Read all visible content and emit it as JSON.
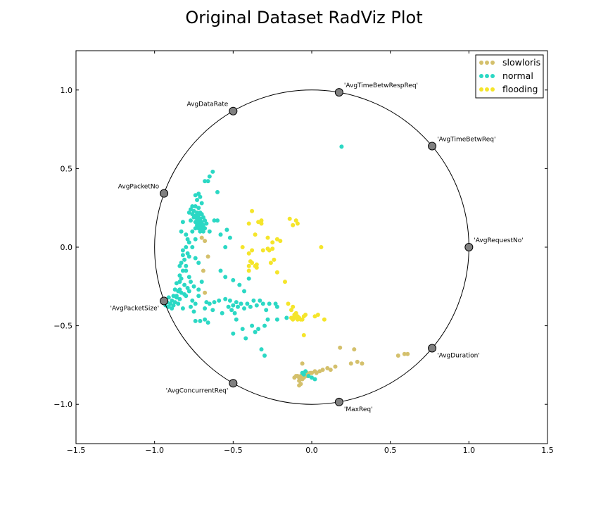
{
  "chart_data": {
    "type": "scatter",
    "title": "Original Dataset RadViz Plot",
    "xlim": [
      -1.5,
      1.5
    ],
    "ylim": [
      -1.25,
      1.25
    ],
    "x_ticks": [
      -1.5,
      -1.0,
      -0.5,
      0.0,
      0.5,
      1.0,
      1.5
    ],
    "x_tick_labels": [
      "−1.5",
      "−1.0",
      "−0.5",
      "0.0",
      "0.5",
      "1.0",
      "1.5"
    ],
    "y_ticks": [
      1.0,
      0.5,
      0.0,
      -0.5,
      -1.0
    ],
    "y_tick_labels": [
      "1.0",
      "0.5",
      "0.0",
      "−0.5",
      "−1.0"
    ],
    "grid": false,
    "legend_position": "top-right",
    "unit_circle": true,
    "anchors": [
      {
        "label": "'AvgRequestNo'",
        "x": 1.0,
        "y": 0.0
      },
      {
        "label": "'AvgTimeBetwReq'",
        "x": 0.766,
        "y": 0.643
      },
      {
        "label": "'AvgTimeBetwRespReq'",
        "x": 0.174,
        "y": 0.985
      },
      {
        "label": "AvgDataRate",
        "x": -0.5,
        "y": 0.866
      },
      {
        "label": "AvgPacketNo",
        "x": -0.94,
        "y": 0.342
      },
      {
        "label": "'AvgPacketSize'",
        "x": -0.94,
        "y": -0.342
      },
      {
        "label": "'AvgConcurrentReq'",
        "x": -0.5,
        "y": -0.866
      },
      {
        "label": "'MaxReq'",
        "x": 0.174,
        "y": -0.985
      },
      {
        "label": "'AvgDuration'",
        "x": 0.766,
        "y": -0.643
      }
    ],
    "series": [
      {
        "name": "slowloris",
        "color": "#d4c06c",
        "points": [
          [
            -0.11,
            -0.83
          ],
          [
            -0.1,
            -0.82
          ],
          [
            -0.09,
            -0.82
          ],
          [
            -0.08,
            -0.83
          ],
          [
            -0.07,
            -0.82
          ],
          [
            -0.06,
            -0.81
          ],
          [
            -0.05,
            -0.82
          ],
          [
            -0.04,
            -0.81
          ],
          [
            -0.03,
            -0.8
          ],
          [
            -0.02,
            -0.81
          ],
          [
            -0.01,
            -0.8
          ],
          [
            0.0,
            -0.8
          ],
          [
            0.02,
            -0.79
          ],
          [
            0.03,
            -0.8
          ],
          [
            0.05,
            -0.79
          ],
          [
            0.07,
            -0.78
          ],
          [
            0.1,
            -0.77
          ],
          [
            0.12,
            -0.78
          ],
          [
            0.15,
            -0.76
          ],
          [
            -0.08,
            -0.85
          ],
          [
            -0.08,
            -0.88
          ],
          [
            -0.07,
            -0.87
          ],
          [
            -0.06,
            -0.84
          ],
          [
            -0.05,
            -0.83
          ],
          [
            -0.03,
            -0.82
          ],
          [
            -0.06,
            -0.74
          ],
          [
            0.18,
            -0.64
          ],
          [
            0.27,
            -0.65
          ],
          [
            0.25,
            -0.74
          ],
          [
            0.29,
            -0.73
          ],
          [
            0.32,
            -0.74
          ],
          [
            0.55,
            -0.69
          ],
          [
            0.59,
            -0.68
          ],
          [
            0.61,
            -0.68
          ],
          [
            -0.7,
            0.06
          ],
          [
            -0.68,
            0.04
          ],
          [
            -0.66,
            -0.06
          ],
          [
            -0.68,
            -0.29
          ],
          [
            -0.69,
            -0.15
          ]
        ]
      },
      {
        "name": "normal",
        "color": "#2bd8c4",
        "points": [
          [
            0.19,
            0.64
          ],
          [
            -0.63,
            0.48
          ],
          [
            -0.65,
            0.45
          ],
          [
            -0.68,
            0.42
          ],
          [
            -0.66,
            0.42
          ],
          [
            -0.6,
            0.35
          ],
          [
            -0.72,
            0.34
          ],
          [
            -0.74,
            0.33
          ],
          [
            -0.71,
            0.32
          ],
          [
            -0.73,
            0.3
          ],
          [
            -0.7,
            0.28
          ],
          [
            -0.76,
            0.26
          ],
          [
            -0.74,
            0.26
          ],
          [
            -0.72,
            0.25
          ],
          [
            -0.77,
            0.24
          ],
          [
            -0.75,
            0.23
          ],
          [
            -0.73,
            0.22
          ],
          [
            -0.71,
            0.22
          ],
          [
            -0.78,
            0.22
          ],
          [
            -0.76,
            0.21
          ],
          [
            -0.74,
            0.2
          ],
          [
            -0.72,
            0.2
          ],
          [
            -0.7,
            0.21
          ],
          [
            -0.75,
            0.19
          ],
          [
            -0.73,
            0.18
          ],
          [
            -0.71,
            0.18
          ],
          [
            -0.69,
            0.19
          ],
          [
            -0.77,
            0.17
          ],
          [
            -0.74,
            0.16
          ],
          [
            -0.72,
            0.16
          ],
          [
            -0.7,
            0.16
          ],
          [
            -0.68,
            0.17
          ],
          [
            -0.73,
            0.14
          ],
          [
            -0.71,
            0.14
          ],
          [
            -0.69,
            0.14
          ],
          [
            -0.67,
            0.15
          ],
          [
            -0.72,
            0.12
          ],
          [
            -0.7,
            0.12
          ],
          [
            -0.68,
            0.12
          ],
          [
            -0.74,
            0.12
          ],
          [
            -0.71,
            0.1
          ],
          [
            -0.69,
            0.1
          ],
          [
            -0.76,
            0.1
          ],
          [
            -0.82,
            0.16
          ],
          [
            -0.83,
            0.1
          ],
          [
            -0.8,
            0.08
          ],
          [
            -0.79,
            0.05
          ],
          [
            -0.78,
            0.03
          ],
          [
            -0.8,
            0.0
          ],
          [
            -0.82,
            -0.02
          ],
          [
            -0.79,
            -0.04
          ],
          [
            -0.78,
            -0.06
          ],
          [
            -0.81,
            -0.08
          ],
          [
            -0.83,
            -0.1
          ],
          [
            -0.8,
            -0.12
          ],
          [
            -0.82,
            -0.15
          ],
          [
            -0.84,
            -0.18
          ],
          [
            -0.83,
            -0.2
          ],
          [
            -0.86,
            -0.23
          ],
          [
            -0.81,
            -0.24
          ],
          [
            -0.79,
            -0.26
          ],
          [
            -0.87,
            -0.27
          ],
          [
            -0.85,
            -0.28
          ],
          [
            -0.83,
            -0.29
          ],
          [
            -0.81,
            -0.3
          ],
          [
            -0.88,
            -0.31
          ],
          [
            -0.86,
            -0.32
          ],
          [
            -0.84,
            -0.33
          ],
          [
            -0.91,
            -0.32
          ],
          [
            -0.89,
            -0.34
          ],
          [
            -0.92,
            -0.35
          ],
          [
            -0.9,
            -0.36
          ],
          [
            -0.88,
            -0.37
          ],
          [
            -0.93,
            -0.37
          ],
          [
            -0.91,
            -0.38
          ],
          [
            -0.87,
            -0.35
          ],
          [
            -0.85,
            -0.36
          ],
          [
            -0.89,
            -0.39
          ],
          [
            -0.86,
            -0.31
          ],
          [
            -0.84,
            -0.27
          ],
          [
            -0.77,
            -0.22
          ],
          [
            -0.75,
            -0.25
          ],
          [
            -0.72,
            -0.27
          ],
          [
            -0.7,
            -0.22
          ],
          [
            -0.76,
            -0.34
          ],
          [
            -0.74,
            -0.36
          ],
          [
            -0.72,
            -0.31
          ],
          [
            -0.74,
            -0.47
          ],
          [
            -0.71,
            -0.47
          ],
          [
            -0.68,
            -0.46
          ],
          [
            -0.66,
            -0.48
          ],
          [
            -0.68,
            -0.39
          ],
          [
            -0.67,
            -0.35
          ],
          [
            -0.65,
            -0.36
          ],
          [
            -0.63,
            -0.4
          ],
          [
            -0.62,
            -0.35
          ],
          [
            -0.59,
            -0.34
          ],
          [
            -0.57,
            -0.42
          ],
          [
            -0.55,
            -0.33
          ],
          [
            -0.52,
            -0.34
          ],
          [
            -0.5,
            -0.37
          ],
          [
            -0.48,
            -0.35
          ],
          [
            -0.53,
            -0.38
          ],
          [
            -0.51,
            -0.4
          ],
          [
            -0.49,
            -0.42
          ],
          [
            -0.47,
            -0.38
          ],
          [
            -0.45,
            -0.36
          ],
          [
            -0.43,
            -0.39
          ],
          [
            -0.41,
            -0.36
          ],
          [
            -0.39,
            -0.38
          ],
          [
            -0.37,
            -0.34
          ],
          [
            -0.35,
            -0.37
          ],
          [
            -0.33,
            -0.34
          ],
          [
            -0.31,
            -0.36
          ],
          [
            -0.29,
            -0.4
          ],
          [
            -0.27,
            -0.36
          ],
          [
            -0.23,
            -0.36
          ],
          [
            -0.22,
            -0.38
          ],
          [
            -0.48,
            -0.46
          ],
          [
            -0.44,
            -0.52
          ],
          [
            -0.42,
            -0.58
          ],
          [
            -0.38,
            -0.5
          ],
          [
            -0.34,
            -0.52
          ],
          [
            -0.3,
            -0.5
          ],
          [
            -0.28,
            -0.46
          ],
          [
            -0.22,
            -0.46
          ],
          [
            -0.16,
            -0.45
          ],
          [
            -0.32,
            -0.65
          ],
          [
            -0.3,
            -0.69
          ],
          [
            -0.36,
            -0.54
          ],
          [
            -0.5,
            -0.55
          ],
          [
            -0.58,
            -0.15
          ],
          [
            -0.55,
            -0.19
          ],
          [
            -0.5,
            -0.21
          ],
          [
            -0.46,
            -0.24
          ],
          [
            -0.43,
            -0.28
          ],
          [
            -0.4,
            -0.2
          ],
          [
            -0.54,
            0.11
          ],
          [
            -0.52,
            0.06
          ],
          [
            -0.55,
            0.0
          ],
          [
            -0.58,
            0.08
          ],
          [
            -0.62,
            0.17
          ],
          [
            -0.6,
            0.17
          ],
          [
            -0.65,
            0.1
          ],
          [
            -0.82,
            -0.05
          ],
          [
            -0.84,
            -0.12
          ],
          [
            -0.8,
            -0.15
          ],
          [
            -0.84,
            -0.22
          ],
          [
            -0.78,
            -0.28
          ],
          [
            -0.8,
            -0.31
          ],
          [
            -0.77,
            -0.38
          ],
          [
            -0.75,
            -0.41
          ],
          [
            -0.82,
            -0.39
          ],
          [
            -0.78,
            -0.19
          ],
          [
            -0.72,
            -0.1
          ],
          [
            -0.74,
            -0.07
          ],
          [
            -0.76,
            0.0
          ],
          [
            -0.74,
            0.05
          ],
          [
            -0.06,
            -0.8
          ],
          [
            -0.05,
            -0.81
          ],
          [
            -0.02,
            -0.82
          ],
          [
            0.0,
            -0.83
          ],
          [
            0.02,
            -0.84
          ],
          [
            -0.04,
            -0.79
          ]
        ]
      },
      {
        "name": "flooding",
        "color": "#f5e52a",
        "points": [
          [
            -0.38,
            0.23
          ],
          [
            -0.4,
            0.15
          ],
          [
            -0.34,
            0.16
          ],
          [
            -0.32,
            0.15
          ],
          [
            -0.32,
            0.17
          ],
          [
            -0.36,
            0.08
          ],
          [
            -0.28,
            0.06
          ],
          [
            -0.25,
            0.03
          ],
          [
            -0.22,
            0.05
          ],
          [
            -0.2,
            0.04
          ],
          [
            -0.14,
            0.18
          ],
          [
            -0.1,
            0.17
          ],
          [
            -0.09,
            0.15
          ],
          [
            -0.12,
            0.14
          ],
          [
            -0.28,
            -0.01
          ],
          [
            -0.25,
            -0.01
          ],
          [
            -0.27,
            -0.02
          ],
          [
            -0.31,
            -0.02
          ],
          [
            -0.38,
            -0.02
          ],
          [
            -0.4,
            -0.04
          ],
          [
            -0.44,
            0.0
          ],
          [
            -0.24,
            -0.08
          ],
          [
            -0.26,
            -0.1
          ],
          [
            -0.39,
            -0.09
          ],
          [
            -0.38,
            -0.1
          ],
          [
            -0.35,
            -0.11
          ],
          [
            -0.35,
            -0.13
          ],
          [
            -0.36,
            -0.12
          ],
          [
            -0.4,
            -0.15
          ],
          [
            -0.4,
            -0.12
          ],
          [
            -0.22,
            -0.16
          ],
          [
            -0.17,
            -0.22
          ],
          [
            -0.15,
            -0.36
          ],
          [
            -0.12,
            -0.38
          ],
          [
            -0.13,
            -0.4
          ],
          [
            -0.13,
            -0.45
          ],
          [
            -0.12,
            -0.46
          ],
          [
            -0.11,
            -0.44
          ],
          [
            -0.1,
            -0.45
          ],
          [
            -0.09,
            -0.46
          ],
          [
            -0.08,
            -0.45
          ],
          [
            -0.07,
            -0.46
          ],
          [
            -0.06,
            -0.46
          ],
          [
            -0.11,
            -0.43
          ],
          [
            -0.1,
            -0.42
          ],
          [
            -0.09,
            -0.44
          ],
          [
            -0.05,
            -0.44
          ],
          [
            -0.04,
            -0.43
          ],
          [
            0.02,
            -0.44
          ],
          [
            0.04,
            -0.43
          ],
          [
            0.08,
            -0.46
          ],
          [
            -0.05,
            -0.56
          ],
          [
            0.06,
            0.0
          ]
        ]
      }
    ]
  }
}
